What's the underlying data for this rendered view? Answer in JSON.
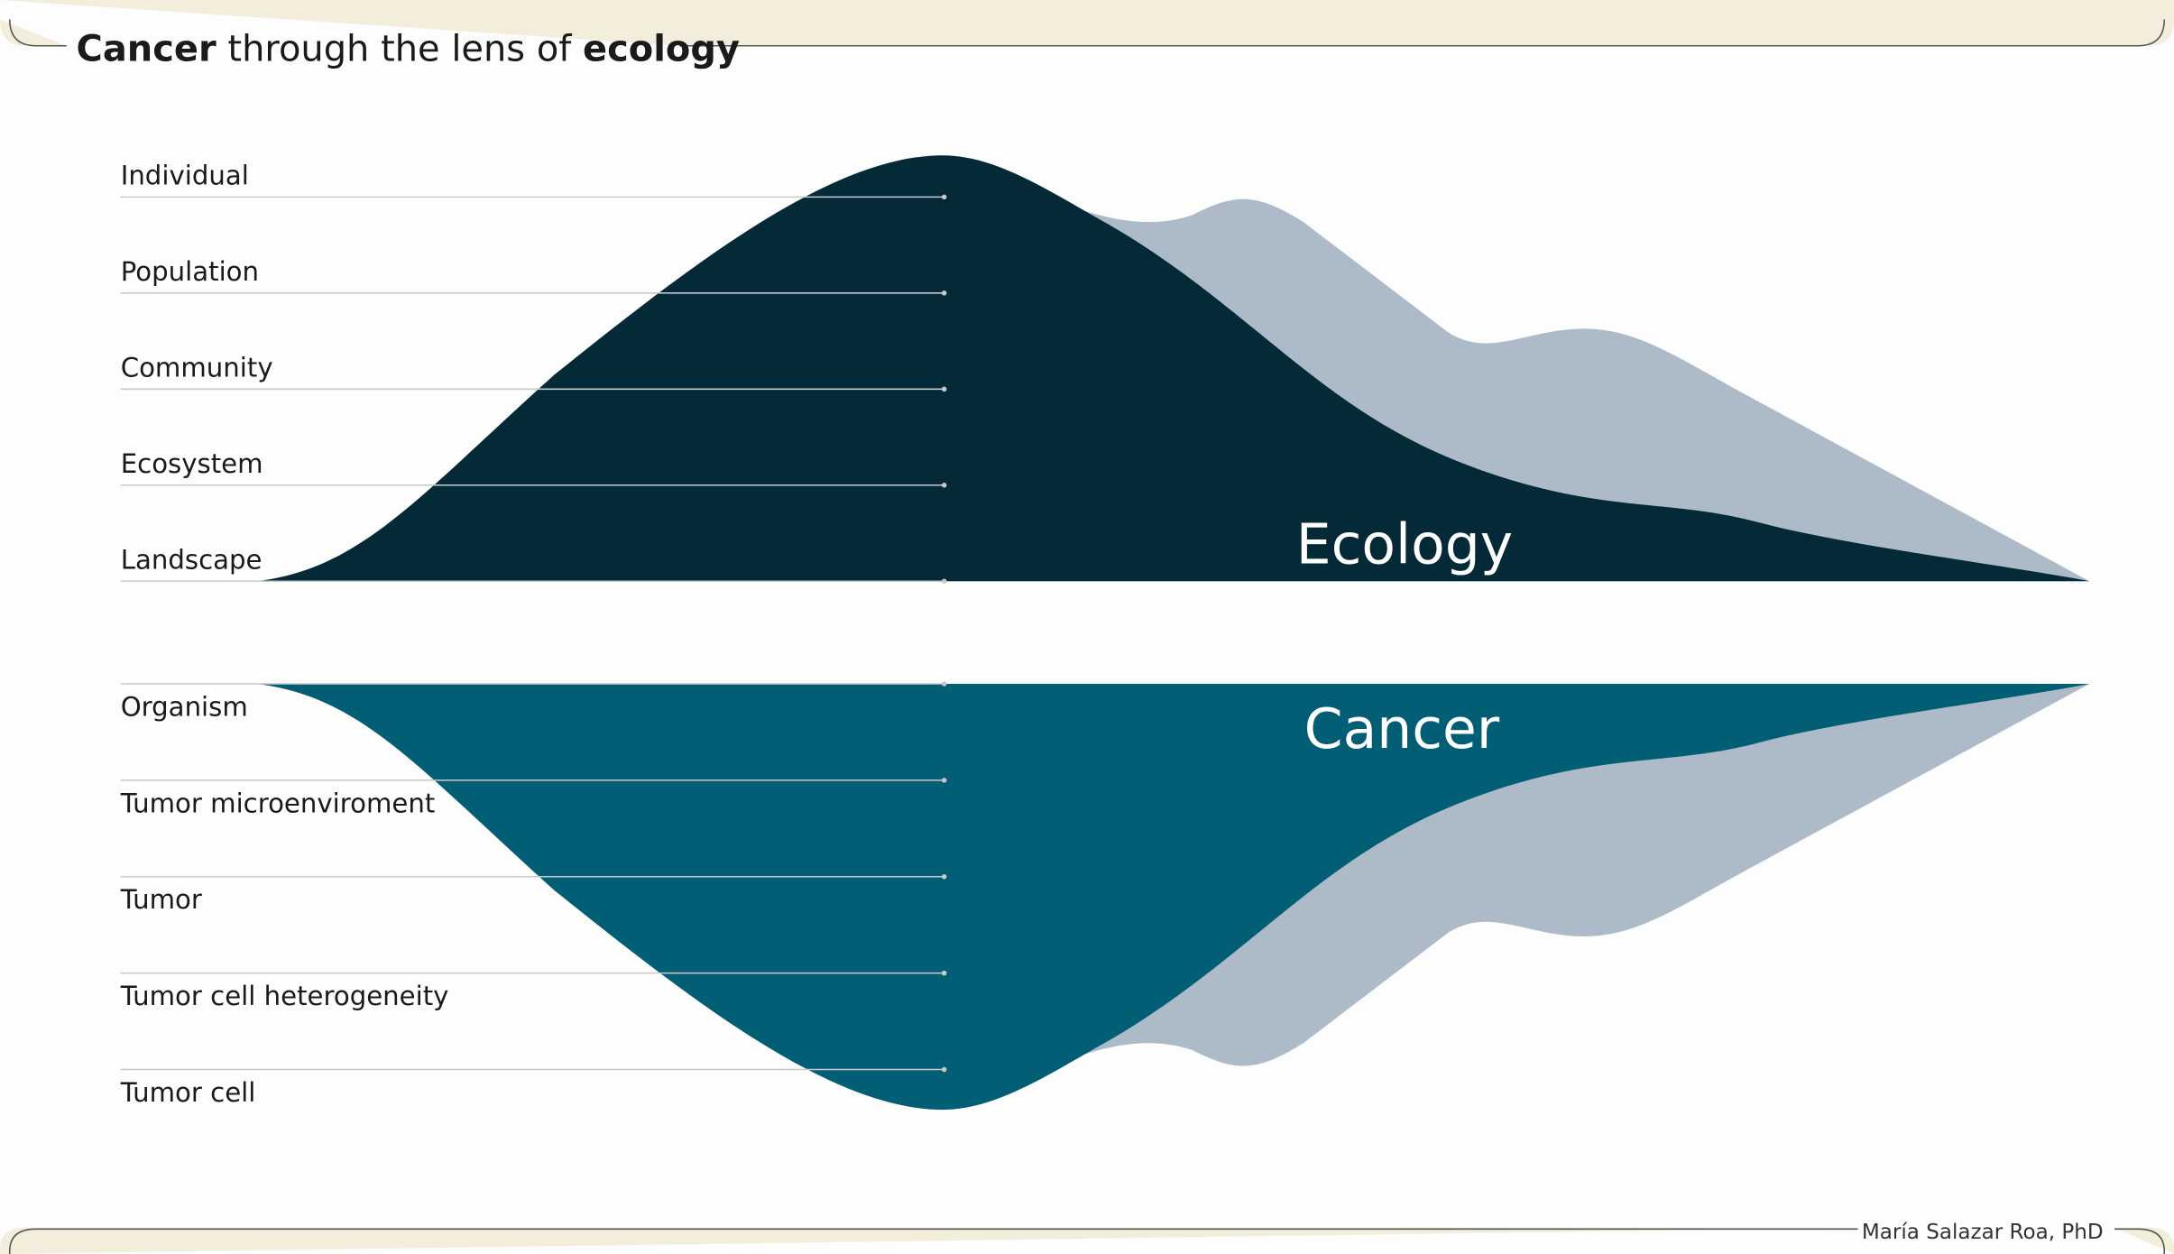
{
  "header": {
    "title": [
      {
        "text": "Cancer",
        "bold": true
      },
      {
        "text": " through the lens of ",
        "bold": false
      },
      {
        "text": "ecology",
        "bold": true
      }
    ]
  },
  "ecology": {
    "label": "Ecology",
    "levels": [
      "Individual",
      "Population",
      "Community",
      "Ecosystem",
      "Landscape"
    ]
  },
  "cancer": {
    "label": "Cancer",
    "levels": [
      "Organism",
      "Tumor microenviroment",
      "Tumor",
      "Tumor cell heterogeneity",
      "Tumor cell"
    ]
  },
  "footer": {
    "credit": "María Salazar Roa, PhD"
  }
}
